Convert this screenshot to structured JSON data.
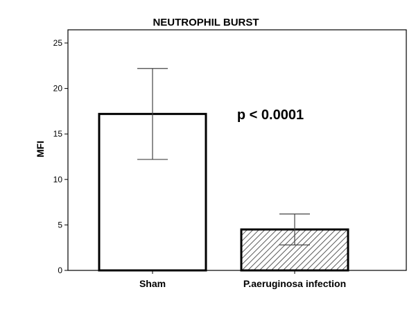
{
  "chart_data": {
    "type": "bar",
    "title": "NEUTROPHIL BURST",
    "xlabel": "",
    "ylabel": "MFI",
    "ylim": [
      0,
      25
    ],
    "yticks": [
      "0",
      "5",
      "10",
      "15",
      "20",
      "25"
    ],
    "categories": [
      "Sham",
      "P.aeruginosa infection"
    ],
    "values": [
      17.2,
      4.5
    ],
    "error_low": [
      12.2,
      2.8
    ],
    "error_high": [
      22.2,
      6.2
    ],
    "fills": [
      "solid-white",
      "hatched"
    ],
    "annotation": "p < 0.0001",
    "grid": false,
    "legend": "none"
  }
}
